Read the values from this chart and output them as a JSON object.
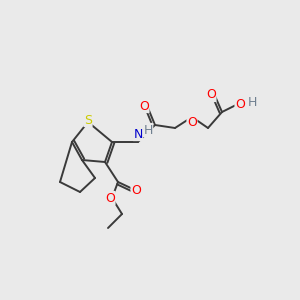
{
  "bg_color": "#eaeaea",
  "atom_colors": {
    "C": "#3a3a3a",
    "O": "#ff0000",
    "N": "#0000cc",
    "S": "#cccc00",
    "H": "#708090"
  },
  "bond_color": "#3a3a3a",
  "bond_width": 1.4,
  "figsize": [
    3.0,
    3.0
  ],
  "dpi": 100,
  "font_size": 8.5
}
